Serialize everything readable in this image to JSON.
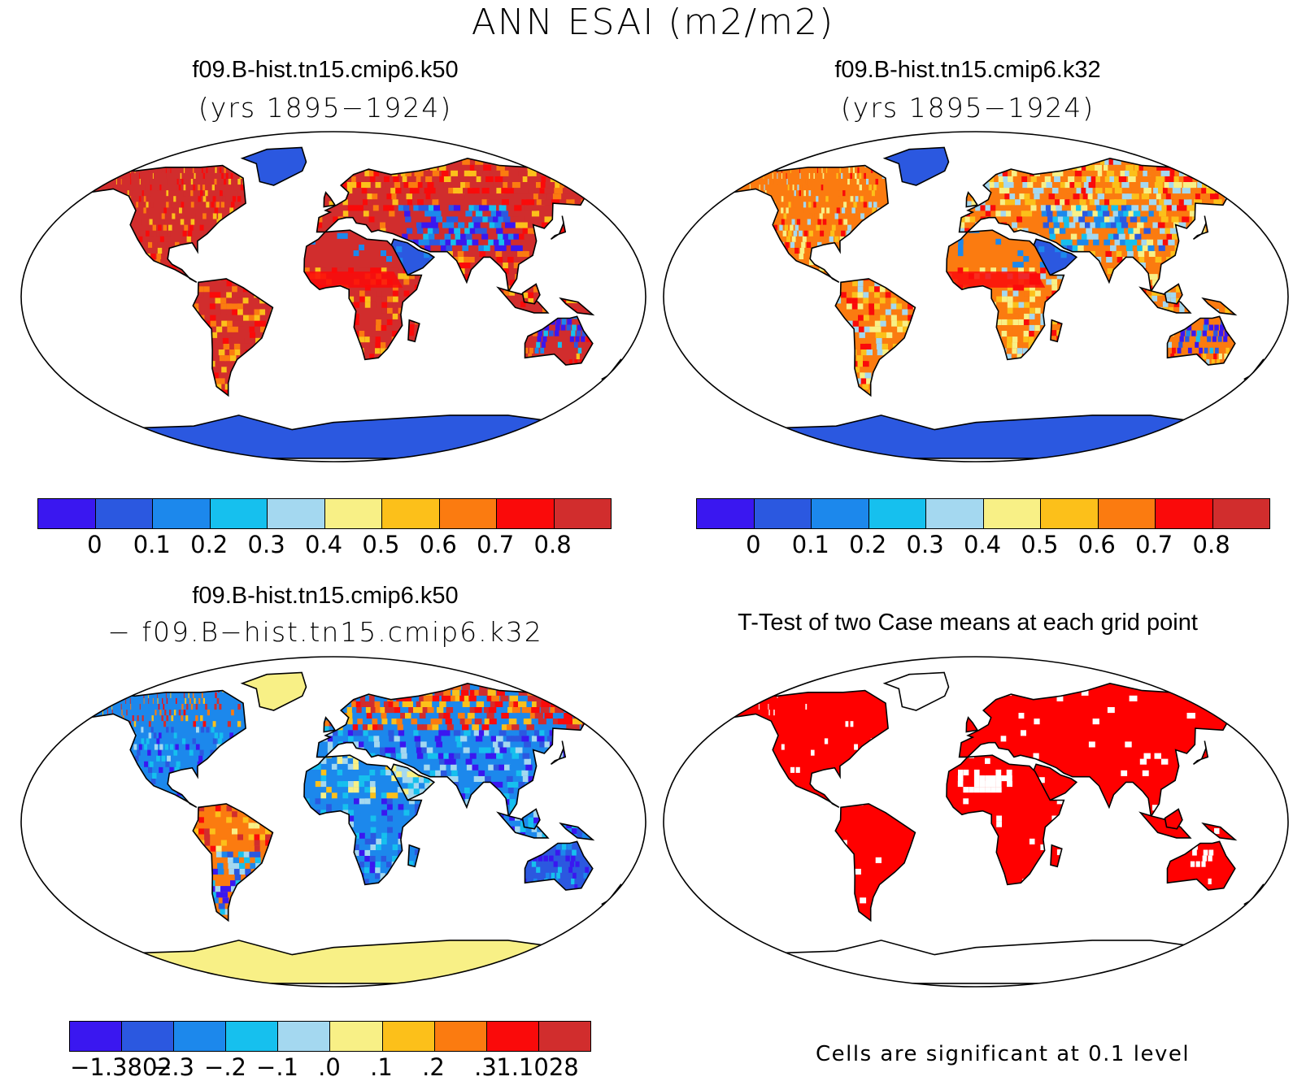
{
  "figure": {
    "title": "ANN ESAI (m2/m2)"
  },
  "panels": [
    {
      "id": "top-left",
      "title": "f09.B-hist.tn15.cmip6.k50",
      "subtitle": "(yrs 1895−1924)",
      "ocean_color": "#ffffff",
      "land_style": "esai"
    },
    {
      "id": "top-right",
      "title": "f09.B-hist.tn15.cmip6.k32",
      "subtitle": "(yrs 1895−1924)",
      "ocean_color": "#ffffff",
      "land_style": "esai"
    },
    {
      "id": "bottom-left",
      "title": "f09.B-hist.tn15.cmip6.k50",
      "subtitle": "− f09.B−hist.tn15.cmip6.k32",
      "ocean_color": "#ffffff",
      "land_style": "difference"
    },
    {
      "id": "bottom-right",
      "title": "T-Test of two Case means at each grid point",
      "subtitle": "",
      "ocean_color": "#ffffff",
      "land_style": "ttest"
    }
  ],
  "colorbars": {
    "esai": {
      "colors": [
        "#3a17f0",
        "#2b58e0",
        "#1c88ec",
        "#16c0ee",
        "#a4d8f0",
        "#f8f086",
        "#fcc01a",
        "#fb7b10",
        "#fa0a0a",
        "#d12d2d"
      ],
      "labels": [
        "0",
        "0.1",
        "0.2",
        "0.3",
        "0.4",
        "0.5",
        "0.6",
        "0.7",
        "0.8"
      ]
    },
    "difference": {
      "colors": [
        "#3a17f0",
        "#2b58e0",
        "#1c88ec",
        "#16c0ee",
        "#a4d8f0",
        "#f8f086",
        "#fcc01a",
        "#fb7b10",
        "#fa0a0a",
        "#d12d2d"
      ],
      "labels": [
        "−1.3802",
        "−.3",
        "−.2",
        "−.1",
        ".0",
        ".1",
        ".2",
        ".3",
        "1.1028"
      ]
    }
  },
  "significance": {
    "note": "Cells are significant at 0.1 level",
    "color": "#ff0000"
  }
}
